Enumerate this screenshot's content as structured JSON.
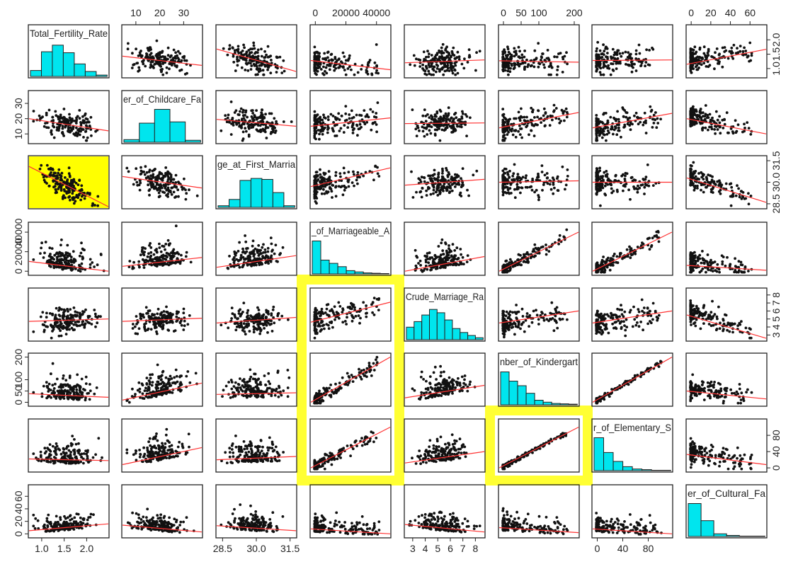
{
  "chart_data": {
    "type": "scatter",
    "variables": [
      {
        "label": "Total_Fertility_Rate",
        "ticks": [
          1.0,
          1.5,
          2.0
        ],
        "tick_labels": [
          "1.0",
          "1.5",
          "2.0"
        ],
        "range": [
          0.75,
          2.45
        ]
      },
      {
        "label": "er_of_Childcare_Fa",
        "ticks": [
          10,
          20,
          30
        ],
        "tick_labels": [
          "10",
          "20",
          "30"
        ],
        "range": [
          5,
          37
        ]
      },
      {
        "label": "ge_at_First_Marria",
        "ticks": [
          28.5,
          30.0,
          31.5
        ],
        "tick_labels": [
          "28.5",
          "30.0",
          "31.5"
        ],
        "range": [
          28.3,
          31.7
        ]
      },
      {
        "label": "_of_Marriageable_A",
        "ticks": [
          0,
          20000,
          40000
        ],
        "tick_labels": [
          "0",
          "20000",
          "40000"
        ],
        "range": [
          -2000,
          48000
        ]
      },
      {
        "label": "Crude_Marriage_Ra",
        "ticks": [
          3,
          4,
          5,
          6,
          7,
          8
        ],
        "tick_labels": [
          "3",
          "4",
          "5",
          "6",
          "7",
          "8"
        ],
        "range": [
          2.5,
          8.6
        ]
      },
      {
        "label": "nber_of_Kindergart",
        "ticks": [
          0,
          50,
          100,
          200
        ],
        "tick_labels": [
          "0",
          "50",
          "100",
          "200"
        ],
        "range": [
          -8,
          208
        ]
      },
      {
        "label": "r_of_Elementary_S",
        "ticks": [
          0,
          40,
          80
        ],
        "tick_labels": [
          "0",
          "40",
          "80"
        ],
        "range": [
          -5,
          115
        ]
      },
      {
        "label": "er_of_Cultural_Fa",
        "ticks": [
          0,
          20,
          40,
          60
        ],
        "tick_labels": [
          "0",
          "20",
          "40",
          "60"
        ],
        "range": [
          -3,
          75
        ]
      }
    ],
    "histograms": [
      [
        0.18,
        0.75,
        0.95,
        0.72,
        0.38,
        0.15,
        0.04
      ],
      [
        0.08,
        0.58,
        1.0,
        0.62,
        0.06
      ],
      [
        0.05,
        0.24,
        0.82,
        0.88,
        0.85,
        0.45,
        0.05
      ],
      [
        1.0,
        0.42,
        0.32,
        0.22,
        0.1,
        0.06,
        0.03,
        0.02,
        0.01
      ],
      [
        0.38,
        0.55,
        0.75,
        0.92,
        0.82,
        0.6,
        0.34,
        0.22,
        0.13,
        0.06
      ],
      [
        1.0,
        0.72,
        0.58,
        0.35,
        0.14,
        0.08,
        0.04,
        0.03,
        0.02
      ],
      [
        1.0,
        0.55,
        0.28,
        0.12,
        0.05,
        0.03,
        0.01,
        0.01
      ],
      [
        1.0,
        0.48,
        0.08,
        0.03,
        0.01,
        0.01
      ]
    ],
    "trend_lines": [
      [
        null,
        [
          1.43,
          1.11
        ],
        [
          1.68,
          0.9
        ],
        [
          1.28,
          0.96
        ],
        [
          1.2,
          1.3
        ],
        [
          1.27,
          1.22
        ],
        [
          1.28,
          1.3
        ],
        [
          1.15,
          1.67
        ]
      ],
      [
        [
          20.0,
          12.0
        ],
        null,
        [
          19.5,
          15.0
        ],
        [
          15.0,
          20.5
        ],
        [
          16.8,
          17.2
        ],
        [
          14.0,
          24.0
        ],
        [
          14.0,
          23.5
        ],
        [
          20.0,
          10.0
        ]
      ],
      [
        [
          31.1,
          28.3
        ],
        [
          30.4,
          29.6
        ],
        null,
        [
          29.7,
          31.0
        ],
        [
          29.8,
          30.2
        ],
        [
          30.0,
          30.1
        ],
        [
          30.0,
          30.0
        ],
        [
          30.3,
          28.6
        ]
      ],
      [
        [
          10000,
          0
        ],
        [
          5000,
          14000
        ],
        [
          4000,
          16000
        ],
        null,
        [
          0,
          15000
        ],
        [
          0,
          40000
        ],
        [
          0,
          40000
        ],
        [
          6000,
          1000
        ]
      ],
      [
        [
          4.7,
          5.0
        ],
        [
          4.7,
          5.1
        ],
        [
          4.5,
          5.2
        ],
        [
          4.6,
          7.1
        ],
        null,
        [
          4.5,
          6.0
        ],
        [
          4.5,
          6.0
        ],
        [
          5.5,
          2.6
        ]
      ],
      [
        [
          38,
          22
        ],
        [
          10,
          85
        ],
        [
          35,
          42
        ],
        [
          0,
          200
        ],
        [
          20,
          75
        ],
        null,
        [
          0,
          200
        ],
        [
          50,
          15
        ]
      ],
      [
        [
          22,
          18
        ],
        [
          8,
          50
        ],
        [
          20,
          28
        ],
        [
          0,
          100
        ],
        [
          12,
          40
        ],
        [
          0,
          100
        ],
        null,
        [
          33,
          8
        ]
      ],
      [
        [
          5,
          16
        ],
        [
          14,
          3
        ],
        [
          13,
          5
        ],
        [
          8,
          0
        ],
        [
          15,
          3
        ],
        [
          10,
          2
        ],
        [
          8,
          0
        ],
        null
      ]
    ],
    "highlights": [
      {
        "kind": "filled",
        "color": "#ffff00",
        "panel": [
          2,
          0
        ]
      },
      {
        "kind": "frame",
        "color": "#ffff33",
        "panels": [
          [
            4,
            3
          ],
          [
            6,
            3
          ]
        ]
      },
      {
        "kind": "frame",
        "color": "#ffff33",
        "panels": [
          [
            6,
            5
          ],
          [
            6,
            5
          ]
        ]
      }
    ]
  }
}
